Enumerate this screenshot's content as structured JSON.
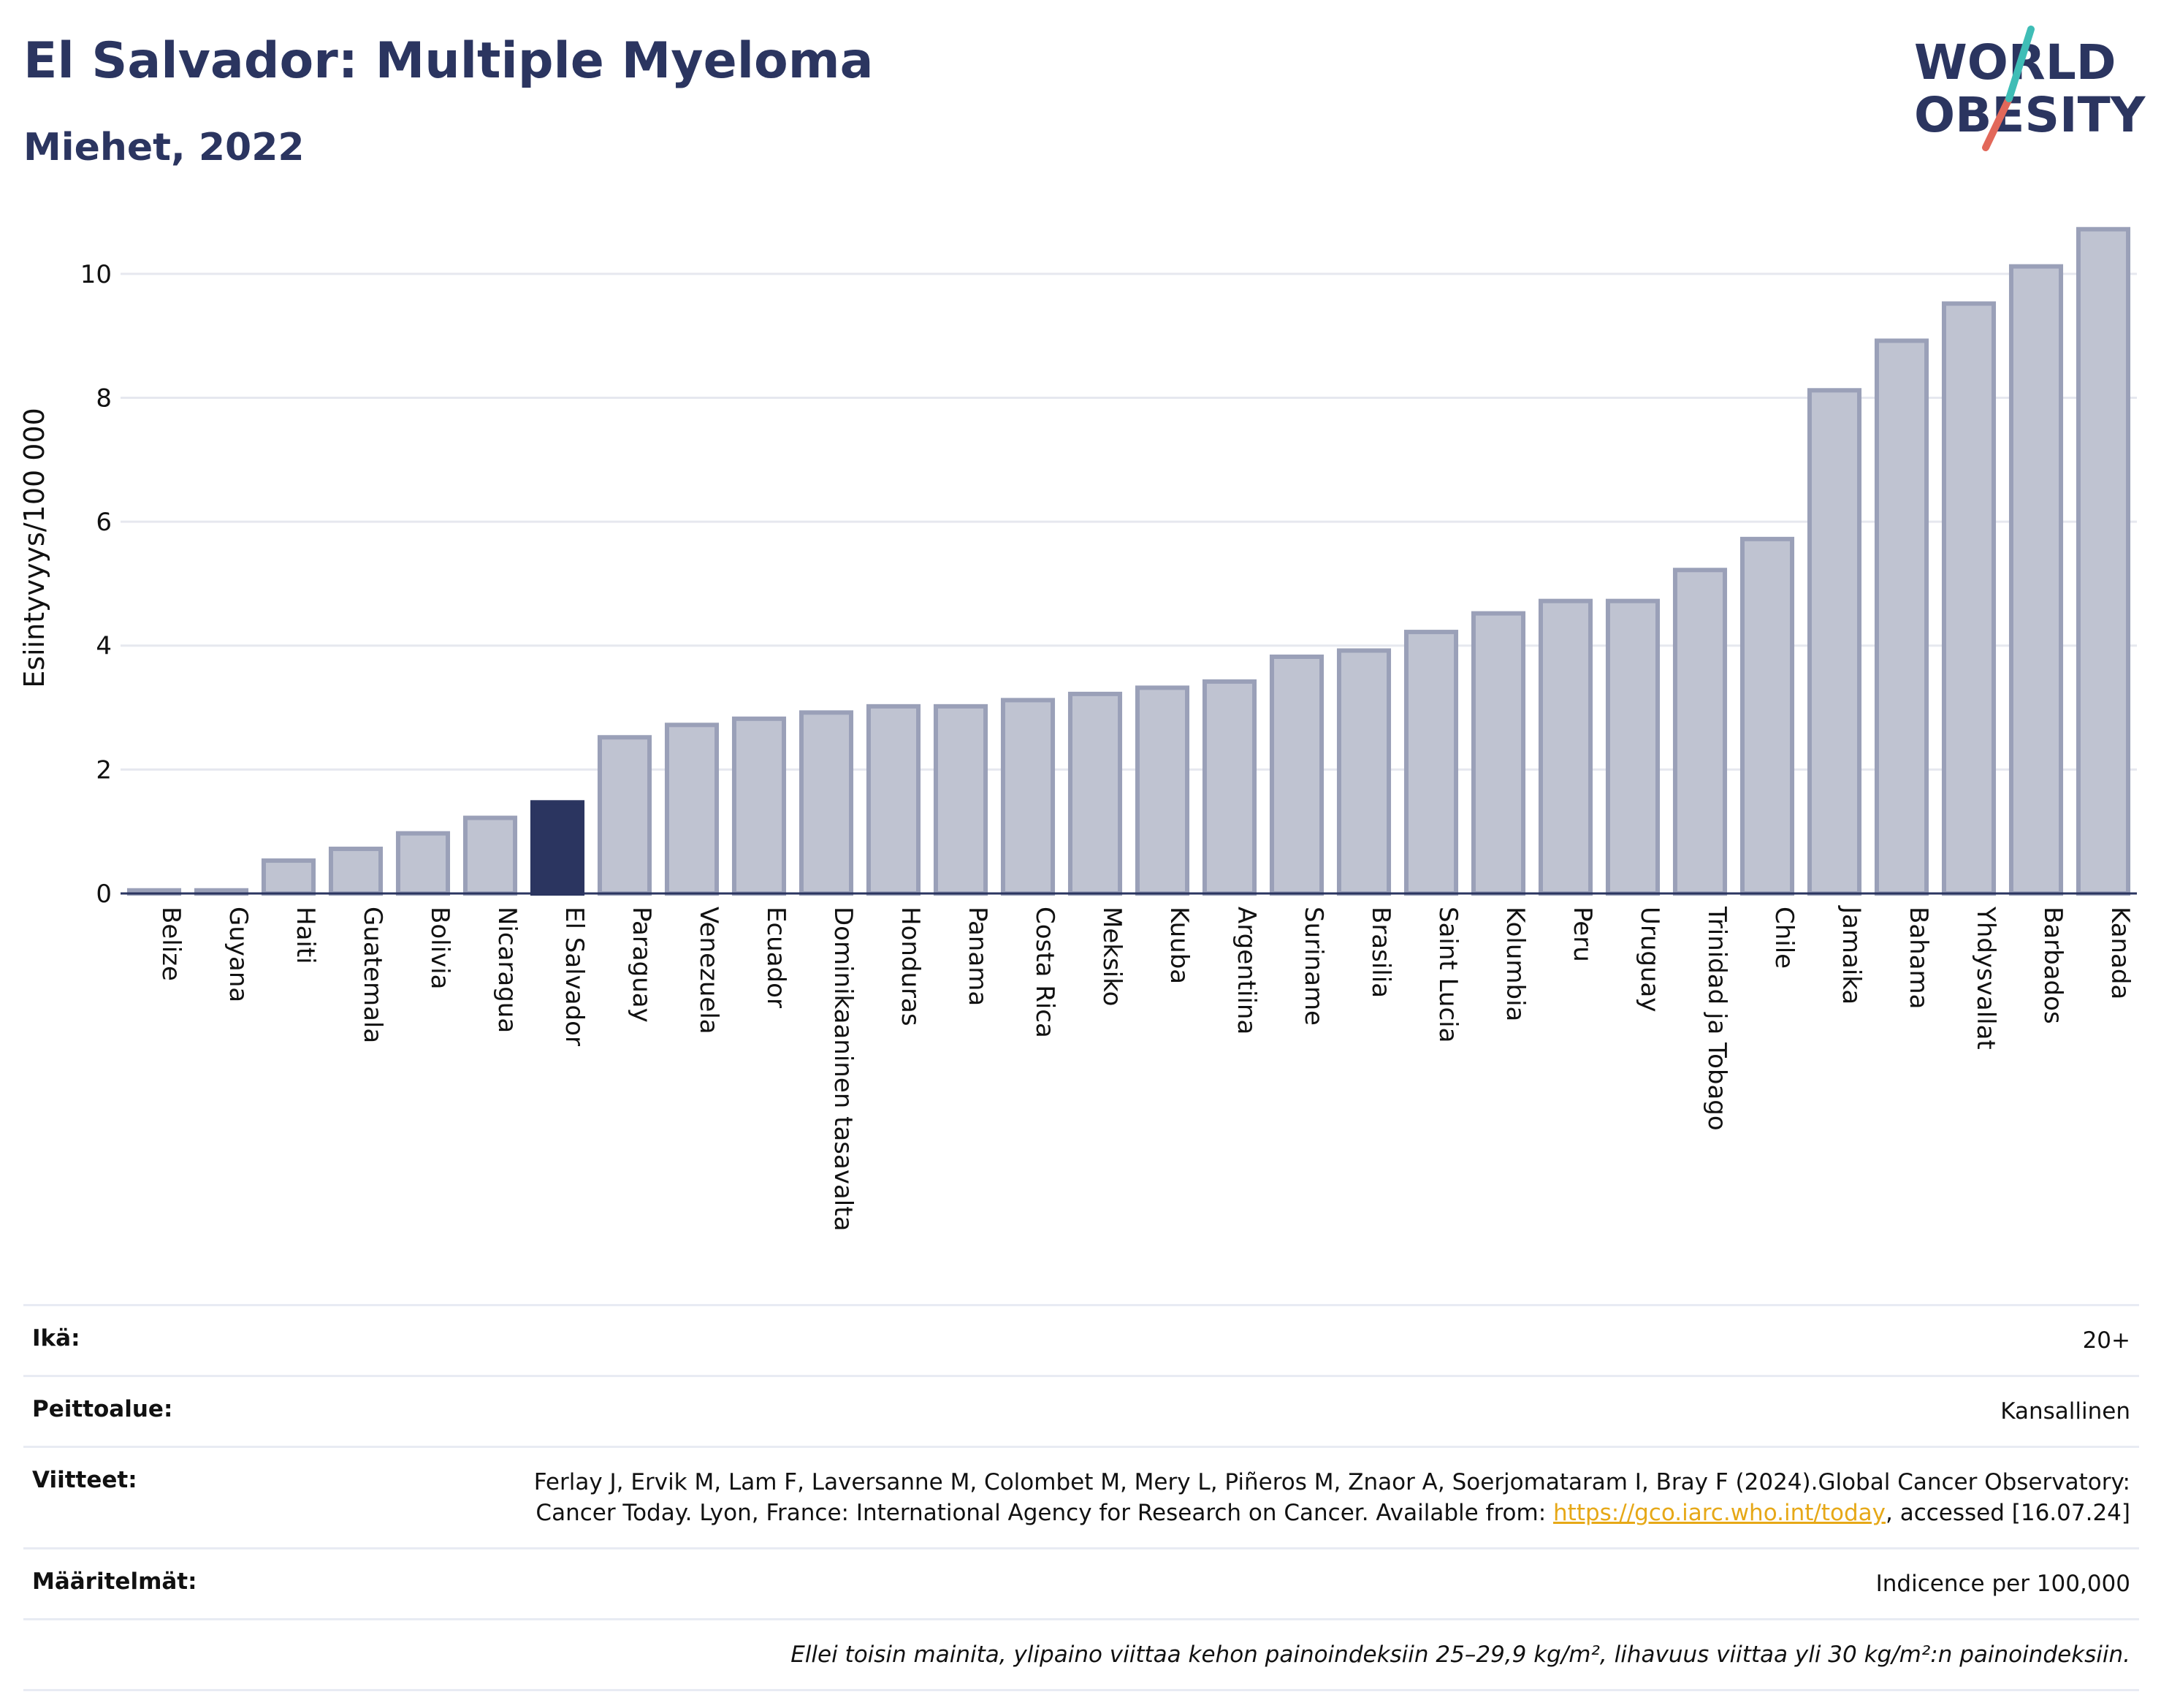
{
  "header": {
    "title": "El Salvador: Multiple Myeloma",
    "subtitle": "Miehet, 2022"
  },
  "logo": {
    "line1": "WORLD",
    "line2": "OBESITY"
  },
  "colors": {
    "highlight": "#2b3560",
    "bar": "#bfc3d1",
    "bar_stroke": "#9aa0b8",
    "slash_teal": "#3fbdb6",
    "slash_red": "#e2685a"
  },
  "chart_data": {
    "type": "bar",
    "ylabel": "Esiintyvyys/100 000",
    "ylim": [
      0,
      11
    ],
    "yticks": [
      0,
      2,
      4,
      6,
      8,
      10
    ],
    "grid": true,
    "highlight": "El Salvador",
    "categories": [
      "Belize",
      "Guyana",
      "Haiti",
      "Guatemala",
      "Bolivia",
      "Nicaragua",
      "El Salvador",
      "Paraguay",
      "Venezuela",
      "Ecuador",
      "Dominikaaninen tasavalta",
      "Honduras",
      "Panama",
      "Costa Rica",
      "Meksiko",
      "Kuuba",
      "Argentiina",
      "Suriname",
      "Brasilia",
      "Saint Lucia",
      "Kolumbia",
      "Peru",
      "Uruguay",
      "Trinidad ja Tobago",
      "Chile",
      "Jamaika",
      "Bahama",
      "Yhdysvallat",
      "Barbados",
      "Kanada"
    ],
    "values": [
      0.05,
      0.05,
      0.53,
      0.72,
      0.97,
      1.22,
      1.47,
      2.52,
      2.72,
      2.82,
      2.92,
      3.02,
      3.02,
      3.12,
      3.22,
      3.32,
      3.42,
      3.82,
      3.92,
      4.22,
      4.52,
      4.72,
      4.72,
      5.22,
      5.72,
      8.12,
      8.92,
      9.52,
      10.12,
      10.72
    ]
  },
  "info": {
    "age_label": "Ikä:",
    "age_value": "20+",
    "coverage_label": "Peittoalue:",
    "coverage_value": "Kansallinen",
    "refs_label": "Viitteet:",
    "refs_text1": "Ferlay J, Ervik M, Lam F, Laversanne M, Colombet M, Mery L, Piñeros M, Znaor A, Soerjomataram I, Bray F (2024).Global Cancer Observatory: Cancer Today. Lyon, France: International Agency for Research on Cancer. Available from: ",
    "refs_link": "https://gco.iarc.who.int/today",
    "refs_text2": ", accessed [16.07.24]",
    "defs_label": "Määritelmät:",
    "defs_value": "Indicence per 100,000",
    "note": "Ellei toisin mainita, ylipaino viittaa kehon painoindeksiin 25–29,9 kg/m², lihavuus viittaa yli 30 kg/m²:n painoindeksiin."
  }
}
